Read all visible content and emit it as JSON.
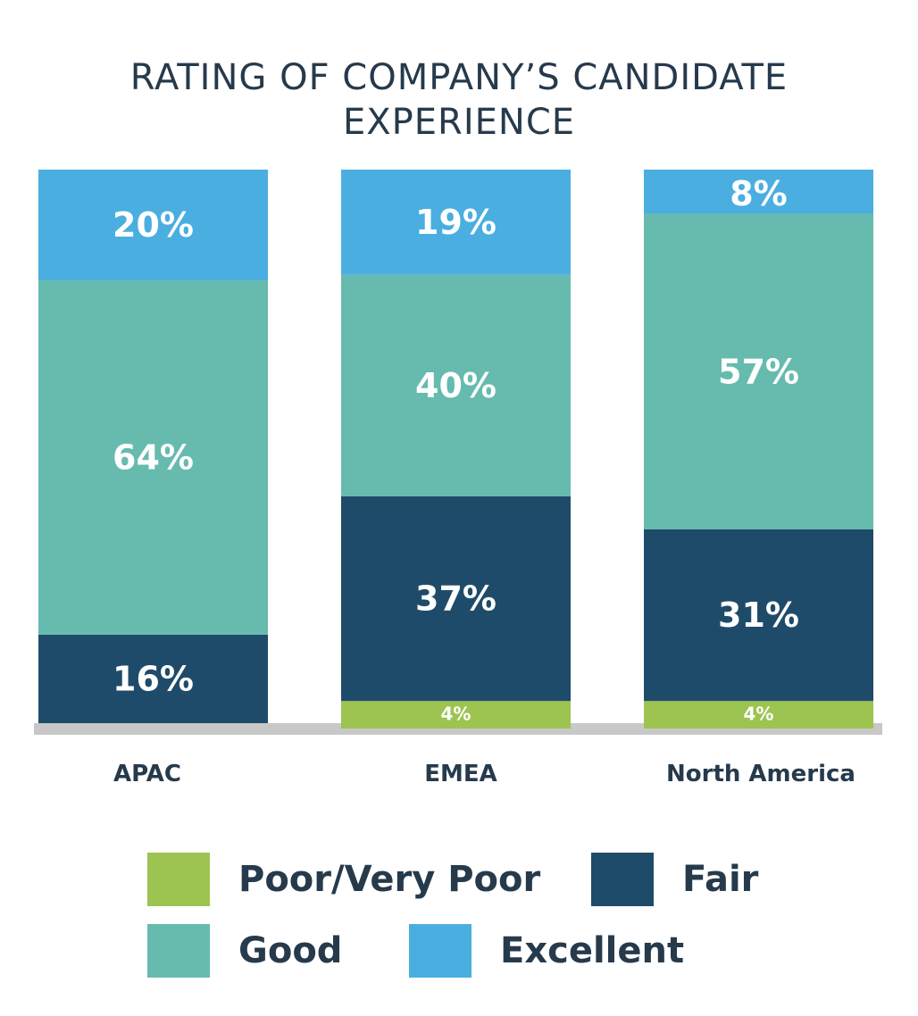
{
  "chart_data": {
    "type": "bar",
    "stacked": true,
    "title_lines": [
      "RATING OF COMPANY’S CANDIDATE",
      "EXPERIENCE"
    ],
    "categories": [
      "APAC",
      "EMEA",
      "North America"
    ],
    "ylim": [
      0,
      100
    ],
    "series": [
      {
        "name": "Poor/Very Poor",
        "color": "#9dc351",
        "values": [
          0,
          4,
          4
        ],
        "labels": [
          "",
          "4%",
          "4%"
        ]
      },
      {
        "name": "Fair",
        "color": "#1f4b6a",
        "values": [
          16,
          37,
          31
        ],
        "labels": [
          "16%",
          "37%",
          "31%"
        ]
      },
      {
        "name": "Good",
        "color": "#66bbae",
        "values": [
          64,
          40,
          57
        ],
        "labels": [
          "64%",
          "40%",
          "57%"
        ]
      },
      {
        "name": "Excellent",
        "color": "#4aaee0",
        "values": [
          20,
          19,
          8
        ],
        "labels": [
          "20%",
          "19%",
          "8%"
        ]
      }
    ],
    "baseline_color": "#c8c8c8",
    "legend_position": "bottom"
  }
}
